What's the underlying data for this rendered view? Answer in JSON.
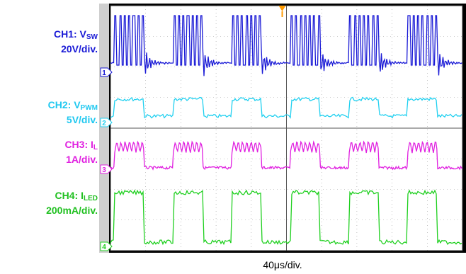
{
  "chart_data": {
    "type": "line",
    "timebase": "40μs/div.",
    "pwm_cycles": 6,
    "channels": [
      {
        "id": "1",
        "name": "CH1: V",
        "sub": "SW",
        "scale": "20V/div.",
        "color": "#1a1ad6",
        "signal": "switching node, burst during PWM high, ringing at turn-off"
      },
      {
        "id": "2",
        "name": "CH2: V",
        "sub": "PWM",
        "scale": "5V/div.",
        "color": "#20d0f0",
        "signal": "square wave"
      },
      {
        "id": "3",
        "name": "CH3: I",
        "sub": "L",
        "scale": "1A/div.",
        "color": "#e020e0",
        "signal": "inductor current, ripple during PWM high"
      },
      {
        "id": "4",
        "name": "CH4: I",
        "sub": "LED",
        "scale": "200mA/div.",
        "color": "#20d020",
        "signal": "LED current square wave"
      }
    ]
  }
}
